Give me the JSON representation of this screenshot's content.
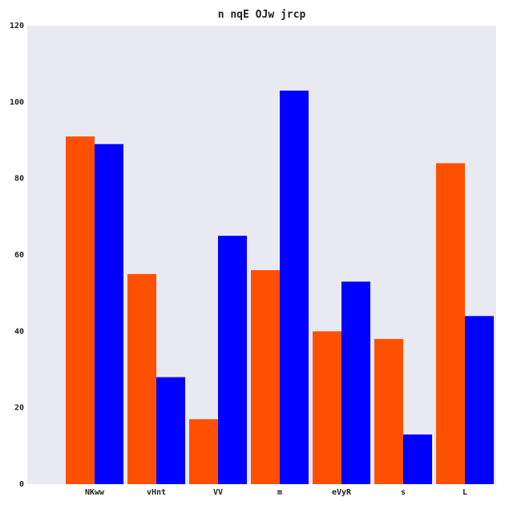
{
  "chart_data": {
    "type": "bar",
    "title": "n nqE OJw jrcp",
    "xlabel": "",
    "ylabel": "",
    "categories": [
      "NKww",
      "vHnt",
      "VV",
      "m",
      "eVyR",
      "s",
      "L"
    ],
    "series": [
      {
        "color": "#ff5000",
        "values": [
          91,
          55,
          17,
          56,
          40,
          38,
          84
        ]
      },
      {
        "color": "#0000ff",
        "values": [
          89,
          28,
          65,
          103,
          53,
          13,
          44
        ]
      }
    ],
    "ylim": [
      0,
      120
    ],
    "yticks": [
      0,
      20,
      40,
      60,
      80,
      100,
      120
    ],
    "grid": false,
    "background_color": "#e9e9f2"
  }
}
